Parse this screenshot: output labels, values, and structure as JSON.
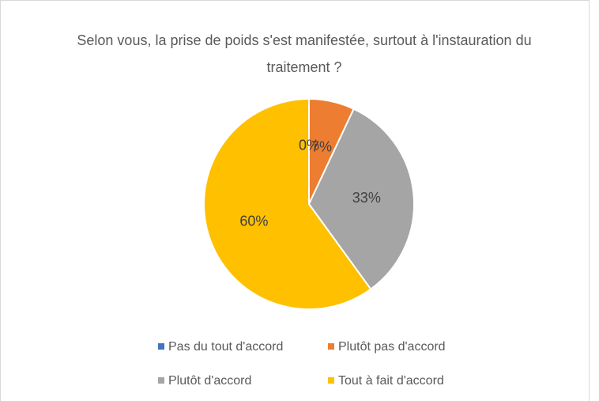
{
  "chart_data": {
    "type": "pie",
    "title": "Selon vous, la prise de poids s'est manifestée, surtout à l'instauration du traitement ?",
    "categories": [
      "Pas du tout d'accord",
      "Plutôt pas d'accord",
      "Plutôt d'accord",
      "Tout à fait d'accord"
    ],
    "values": [
      0,
      7,
      33,
      60
    ],
    "value_labels": [
      "0%",
      "7%",
      "33%",
      "60%"
    ],
    "colors": [
      "#4472c4",
      "#ed7d31",
      "#a5a5a5",
      "#ffc000"
    ],
    "legend": "bottom"
  }
}
